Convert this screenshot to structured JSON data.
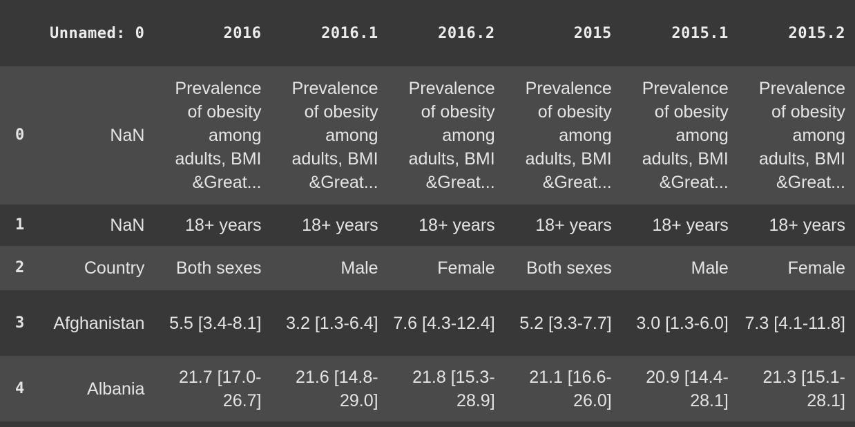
{
  "columns": [
    "Unnamed: 0",
    "2016",
    "2016.1",
    "2016.2",
    "2015",
    "2015.1",
    "2015.2"
  ],
  "rows": [
    {
      "index": "0",
      "cells": [
        "NaN",
        "Prevalence of obesity among adults, BMI &Great...",
        "Prevalence of obesity among adults, BMI &Great...",
        "Prevalence of obesity among adults, BMI &Great...",
        "Prevalence of obesity among adults, BMI &Great...",
        "Prevalence of obesity among adults, BMI &Great...",
        "Prevalence of obesity among adults, BMI &Great..."
      ]
    },
    {
      "index": "1",
      "cells": [
        "NaN",
        "18+ years",
        "18+ years",
        "18+ years",
        "18+ years",
        "18+ years",
        "18+ years"
      ]
    },
    {
      "index": "2",
      "cells": [
        "Country",
        "Both sexes",
        "Male",
        "Female",
        "Both sexes",
        "Male",
        "Female"
      ]
    },
    {
      "index": "3",
      "cells": [
        "Afghanistan",
        "5.5 [3.4-8.1]",
        "3.2 [1.3-6.4]",
        "7.6 [4.3-12.4]",
        "5.2 [3.3-7.7]",
        "3.0 [1.3-6.0]",
        "7.3 [4.1-11.8]"
      ]
    },
    {
      "index": "4",
      "cells": [
        "Albania",
        "21.7 [17.0-26.7]",
        "21.6 [14.8-29.0]",
        "21.8 [15.3-28.9]",
        "21.1 [16.6-26.0]",
        "20.9 [14.4-28.1]",
        "21.3 [15.1-28.1]"
      ]
    }
  ]
}
